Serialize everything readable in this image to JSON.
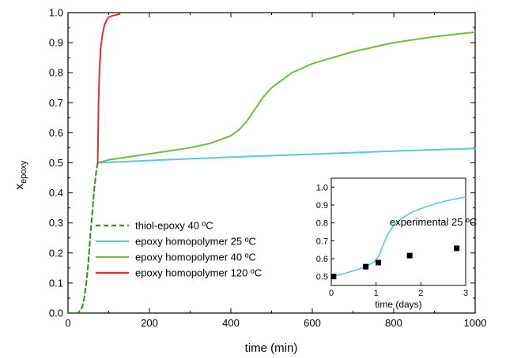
{
  "chart_data": {
    "type": "line",
    "xlabel": "time (min)",
    "ylabel": {
      "base": "x",
      "subscript": "epoxy"
    },
    "xlim": [
      0,
      1000
    ],
    "ylim": [
      0,
      1.0
    ],
    "xticks": [
      "0",
      "200",
      "400",
      "600",
      "800",
      "1000"
    ],
    "yticks": [
      "0.0",
      "0.1",
      "0.2",
      "0.3",
      "0.4",
      "0.5",
      "0.6",
      "0.7",
      "0.8",
      "0.9",
      "1.0"
    ],
    "grid": false,
    "legend_position": "bottom-left",
    "series": [
      {
        "name": "thiol-epoxy 40 ºC",
        "color": "#2e8b2e",
        "dash": true,
        "x": [
          0,
          25,
          35,
          40,
          45,
          50,
          55,
          60,
          65,
          70,
          73
        ],
        "y": [
          0,
          0,
          0.02,
          0.05,
          0.1,
          0.17,
          0.26,
          0.34,
          0.42,
          0.48,
          0.5
        ]
      },
      {
        "name": "epoxy homopolymer 25 ºC",
        "color": "#5bc8d6",
        "dash": false,
        "x": [
          73,
          200,
          400,
          600,
          800,
          1000
        ],
        "y": [
          0.5,
          0.508,
          0.519,
          0.529,
          0.539,
          0.548
        ]
      },
      {
        "name": "epoxy homopolymer 40 ºC",
        "color": "#6cbf3c",
        "dash": false,
        "x": [
          73,
          100,
          150,
          200,
          250,
          300,
          350,
          400,
          420,
          440,
          460,
          480,
          500,
          550,
          600,
          700,
          800,
          900,
          1000
        ],
        "y": [
          0.5,
          0.51,
          0.52,
          0.53,
          0.54,
          0.55,
          0.565,
          0.59,
          0.61,
          0.64,
          0.68,
          0.72,
          0.75,
          0.8,
          0.83,
          0.87,
          0.9,
          0.92,
          0.935
        ]
      },
      {
        "name": "epoxy homopolymer 120 ºC",
        "color": "#e0302a",
        "dash": false,
        "x": [
          73,
          74,
          75,
          77,
          80,
          85,
          90,
          95,
          100,
          110,
          120,
          127
        ],
        "y": [
          0.5,
          0.6,
          0.7,
          0.8,
          0.88,
          0.93,
          0.96,
          0.975,
          0.985,
          0.99,
          0.993,
          0.995
        ]
      }
    ],
    "inset": {
      "xlabel": "time (days)",
      "xlim": [
        0,
        3
      ],
      "ylim": [
        0.45,
        1.05
      ],
      "xticks": [
        "0",
        "1",
        "2",
        "3"
      ],
      "yticks": [
        "0.5",
        "0.6",
        "0.7",
        "0.8",
        "0.9",
        "1.0"
      ],
      "annotation": "experimental 25 ºC",
      "curve": {
        "color": "#5bc8d6",
        "x": [
          0,
          0.2,
          0.4,
          0.6,
          0.8,
          0.95,
          1.05,
          1.15,
          1.25,
          1.4,
          1.6,
          1.8,
          2.0,
          2.3,
          2.6,
          3.0
        ],
        "y": [
          0.5,
          0.51,
          0.525,
          0.54,
          0.56,
          0.58,
          0.61,
          0.67,
          0.73,
          0.79,
          0.83,
          0.86,
          0.88,
          0.905,
          0.925,
          0.945
        ]
      },
      "experimental": {
        "x": [
          0.05,
          0.77,
          1.05,
          1.75,
          2.8
        ],
        "y": [
          0.5,
          0.555,
          0.578,
          0.617,
          0.658
        ]
      }
    }
  }
}
